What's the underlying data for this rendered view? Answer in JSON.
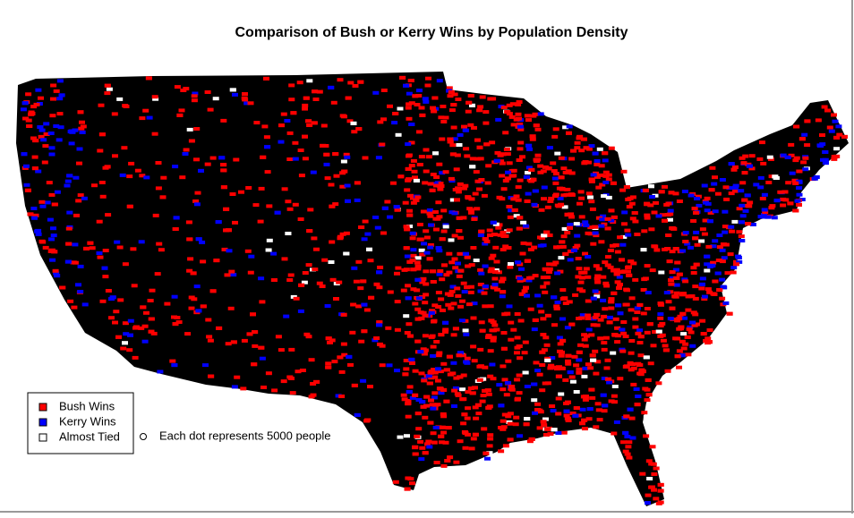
{
  "title": "Comparison of Bush or Kerry Wins by Population Density",
  "legend": {
    "items": [
      {
        "label": "Bush Wins",
        "color": "#ff0000"
      },
      {
        "label": "Kerry Wins",
        "color": "#0000ff"
      },
      {
        "label": "Almost Tied",
        "color": "#ffffff"
      }
    ]
  },
  "note": "Each dot represents 5000 people"
}
